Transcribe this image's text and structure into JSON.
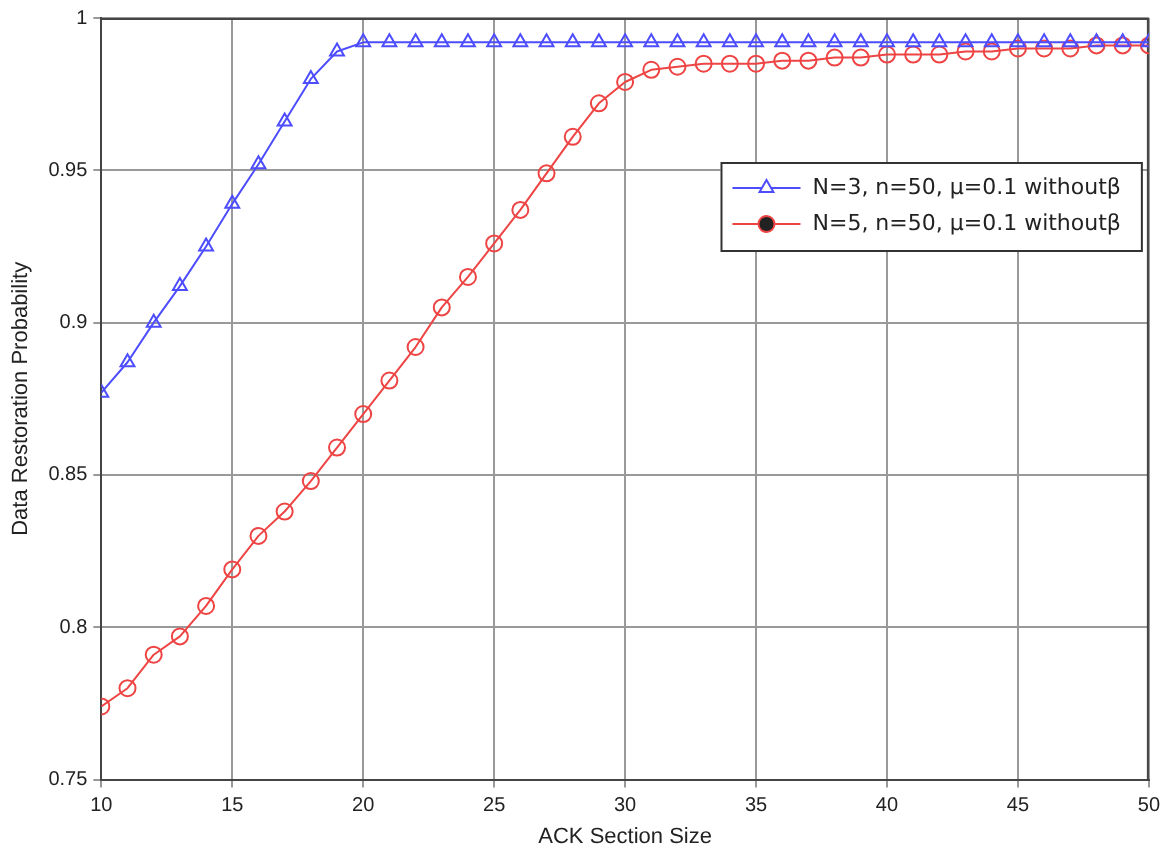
{
  "chart_data": {
    "type": "line",
    "xlabel": "ACK Section Size",
    "ylabel": "Data Restoration Probability",
    "x": [
      10,
      11,
      12,
      13,
      14,
      15,
      16,
      17,
      18,
      19,
      20,
      21,
      22,
      23,
      24,
      25,
      26,
      27,
      28,
      29,
      30,
      31,
      32,
      33,
      34,
      35,
      36,
      37,
      38,
      39,
      40,
      41,
      42,
      43,
      44,
      45,
      46,
      47,
      48,
      49,
      50
    ],
    "series": [
      {
        "name": "N=3, n=50, μ=0.1 withoutβ",
        "color": "#4d4dff",
        "marker": "triangle",
        "values": [
          0.877,
          0.887,
          0.9,
          0.912,
          0.925,
          0.939,
          0.952,
          0.966,
          0.98,
          0.989,
          0.992,
          0.992,
          0.992,
          0.992,
          0.992,
          0.992,
          0.992,
          0.992,
          0.992,
          0.992,
          0.992,
          0.992,
          0.992,
          0.992,
          0.992,
          0.992,
          0.992,
          0.992,
          0.992,
          0.992,
          0.992,
          0.992,
          0.992,
          0.992,
          0.992,
          0.992,
          0.992,
          0.992,
          0.992,
          0.992,
          0.992
        ]
      },
      {
        "name": "N=5, n=50, μ=0.1 withoutβ",
        "color": "#ee4444",
        "marker": "circle",
        "values": [
          0.774,
          0.78,
          0.791,
          0.797,
          0.807,
          0.819,
          0.83,
          0.838,
          0.848,
          0.859,
          0.87,
          0.881,
          0.892,
          0.905,
          0.915,
          0.926,
          0.937,
          0.949,
          0.961,
          0.972,
          0.979,
          0.983,
          0.984,
          0.985,
          0.985,
          0.985,
          0.986,
          0.986,
          0.987,
          0.987,
          0.988,
          0.988,
          0.988,
          0.989,
          0.989,
          0.99,
          0.99,
          0.99,
          0.991,
          0.991,
          0.991
        ]
      }
    ],
    "xlim": [
      10,
      50
    ],
    "xticks": [
      10,
      15,
      20,
      25,
      30,
      35,
      40,
      45,
      50
    ],
    "ylim": [
      0.75,
      1
    ],
    "yticks": [
      0.75,
      0.8,
      0.85,
      0.9,
      0.95,
      1
    ],
    "grid": true,
    "legend": "top right",
    "line_style": "solid"
  }
}
